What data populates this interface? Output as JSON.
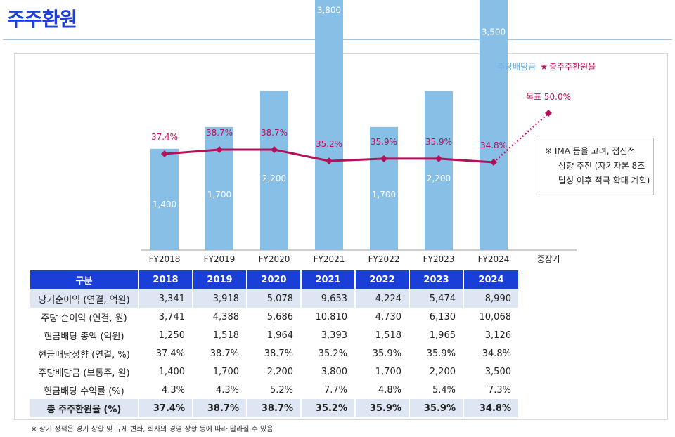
{
  "page": {
    "title": "주주환원"
  },
  "legend": {
    "bar_label": "주당배당금",
    "line_marker": "★",
    "line_label": "총주주환원율"
  },
  "note": {
    "line1": "※ IMA 등을 고려, 점진적",
    "line2": "상향 추진 (자기자본 8조",
    "line3": "달성 이후 적극 확대 계획)"
  },
  "chart_data": {
    "type": "bar",
    "categories": [
      "FY2018",
      "FY2019",
      "FY2020",
      "FY2021",
      "FY2022",
      "FY2023",
      "FY2024",
      "중장기"
    ],
    "series": [
      {
        "name": "주당배당금",
        "type": "bar",
        "values": [
          1400,
          1700,
          2200,
          3800,
          1700,
          2200,
          3500,
          null
        ],
        "labels": [
          "1,400",
          "1,700",
          "2,200",
          "3,800",
          "1,700",
          "2,200",
          "3,500",
          ""
        ]
      },
      {
        "name": "총주주환원율",
        "type": "line",
        "values": [
          37.4,
          38.7,
          38.7,
          35.2,
          35.9,
          35.9,
          34.8,
          50.0
        ],
        "labels": [
          "37.4%",
          "38.7%",
          "38.7%",
          "35.2%",
          "35.9%",
          "35.9%",
          "34.8%",
          "목표 50.0%"
        ]
      }
    ],
    "target": {
      "value": 50.0,
      "label": "목표 50.0%"
    },
    "colors": {
      "bar": "#87bfe6",
      "line": "#b5115a",
      "bar_label": "#ffffff"
    },
    "bar_ylim": [
      0,
      4500
    ],
    "line_ylim": [
      20,
      60
    ]
  },
  "table": {
    "headers": [
      "구분",
      "2018",
      "2019",
      "2020",
      "2021",
      "2022",
      "2023",
      "2024"
    ],
    "rows": [
      {
        "label": "당기순이익 (연결, 억원)",
        "values": [
          "3,341",
          "3,918",
          "5,078",
          "9,653",
          "4,224",
          "5,474",
          "8,990"
        ]
      },
      {
        "label": "주당 순이익 (연결, 원)",
        "values": [
          "3,741",
          "4,388",
          "5,686",
          "10,810",
          "4,730",
          "6,130",
          "10,068"
        ]
      },
      {
        "label": "현금배당 총액 (억원)",
        "values": [
          "1,250",
          "1,518",
          "1,964",
          "3,393",
          "1,518",
          "1,965",
          "3,126"
        ]
      },
      {
        "label": "현금배당성향 (연결, %)",
        "values": [
          "37.4%",
          "38.7%",
          "38.7%",
          "35.2%",
          "35.9%",
          "35.9%",
          "34.8%"
        ]
      },
      {
        "label": "주당배당금 (보통주, 원)",
        "values": [
          "1,400",
          "1,700",
          "2,200",
          "3,800",
          "1,700",
          "2,200",
          "3,500"
        ]
      },
      {
        "label": "현금배당 수익률 (%)",
        "values": [
          "4.3%",
          "4.3%",
          "5.2%",
          "7.7%",
          "4.8%",
          "5.4%",
          "7.3%"
        ]
      },
      {
        "label": "총 주주환원율 (%)",
        "values": [
          "37.4%",
          "38.7%",
          "38.7%",
          "35.2%",
          "35.9%",
          "35.9%",
          "34.8%"
        ]
      }
    ]
  },
  "footnote": "※ 상기 정책은 경기 상황 및 규제 변화, 회사의 경영 상황 등에 따라 달라질 수 있음"
}
